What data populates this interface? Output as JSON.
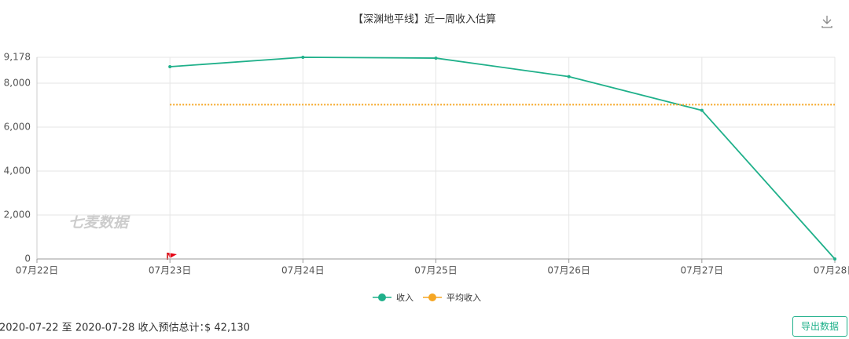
{
  "chart_data": {
    "type": "line",
    "title": "【深渊地平线】近一周收入估算",
    "categories": [
      "07月22日",
      "07月23日",
      "07月24日",
      "07月25日",
      "07月26日",
      "07月27日",
      "07月28日"
    ],
    "series": [
      {
        "name": "收入",
        "color": "#1fb08a",
        "style": "solid",
        "values": [
          null,
          8750,
          9178,
          9140,
          8300,
          6762,
          0
        ]
      },
      {
        "name": "平均收入",
        "color": "#f5a623",
        "style": "dotted",
        "values": [
          null,
          7022,
          7022,
          7022,
          7022,
          7022,
          7022
        ]
      }
    ],
    "ylim": [
      0,
      9178
    ],
    "yticks": [
      0,
      {
        "value": 2000,
        "label": "2,000"
      },
      {
        "value": 4000,
        "label": "4,000"
      },
      {
        "value": 6000,
        "label": "6,000"
      },
      {
        "value": 8000,
        "label": "8,000"
      },
      {
        "value": 9178,
        "label": "9,178"
      }
    ],
    "grid": true,
    "watermark": "七麦数据"
  },
  "footer": {
    "summary": "2020-07-22 至 2020-07-28 收入预估总计：",
    "total": "$ 42,130",
    "export_button": "导出数据"
  }
}
